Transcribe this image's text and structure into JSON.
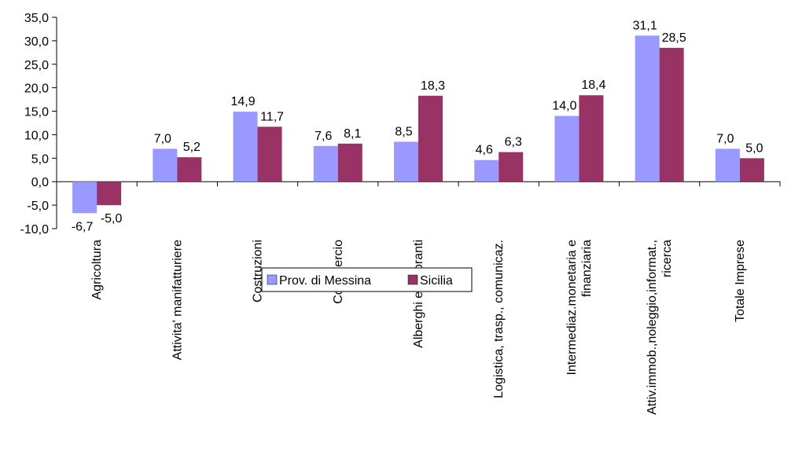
{
  "chart_data": {
    "type": "bar",
    "title": "",
    "xlabel": "",
    "ylabel": "",
    "ylim": [
      -10,
      35
    ],
    "yticks": [
      -10,
      -5,
      0,
      5,
      10,
      15,
      20,
      25,
      30,
      35
    ],
    "ytick_labels": [
      "-10,0",
      "-5,0",
      "0,0",
      "5,0",
      "10,0",
      "15,0",
      "20,0",
      "25,0",
      "30,0",
      "35,0"
    ],
    "grid": false,
    "legend_position": "bottom-center",
    "categories": [
      [
        "Agricoltura"
      ],
      [
        "Attivita' manifatturiere"
      ],
      [
        "Costruzioni"
      ],
      [
        "Commercio"
      ],
      [
        "Alberghi e ristoranti"
      ],
      [
        "Logistica, trasp., comunicaz."
      ],
      [
        "Intermediaz.monetaria e",
        "finanziaria"
      ],
      [
        "Attiv.immob.,noleggio,informat.,",
        "ricerca"
      ],
      [
        "Totale Imprese"
      ]
    ],
    "series": [
      {
        "name": "Prov. di Messina",
        "color": "#9999FF",
        "values": [
          -6.7,
          7.0,
          14.9,
          7.6,
          8.5,
          4.6,
          14.0,
          31.1,
          7.0
        ],
        "labels": [
          "-6,7",
          "7,0",
          "14,9",
          "7,6",
          "8,5",
          "4,6",
          "14,0",
          "31,1",
          "7,0"
        ]
      },
      {
        "name": "Sicilia",
        "color": "#993366",
        "values": [
          -5.0,
          5.2,
          11.7,
          8.1,
          18.3,
          6.3,
          18.4,
          28.5,
          5.0
        ],
        "labels": [
          "-5,0",
          "5,2",
          "11,7",
          "8,1",
          "18,3",
          "6,3",
          "18,4",
          "28,5",
          "5,0"
        ]
      }
    ]
  }
}
